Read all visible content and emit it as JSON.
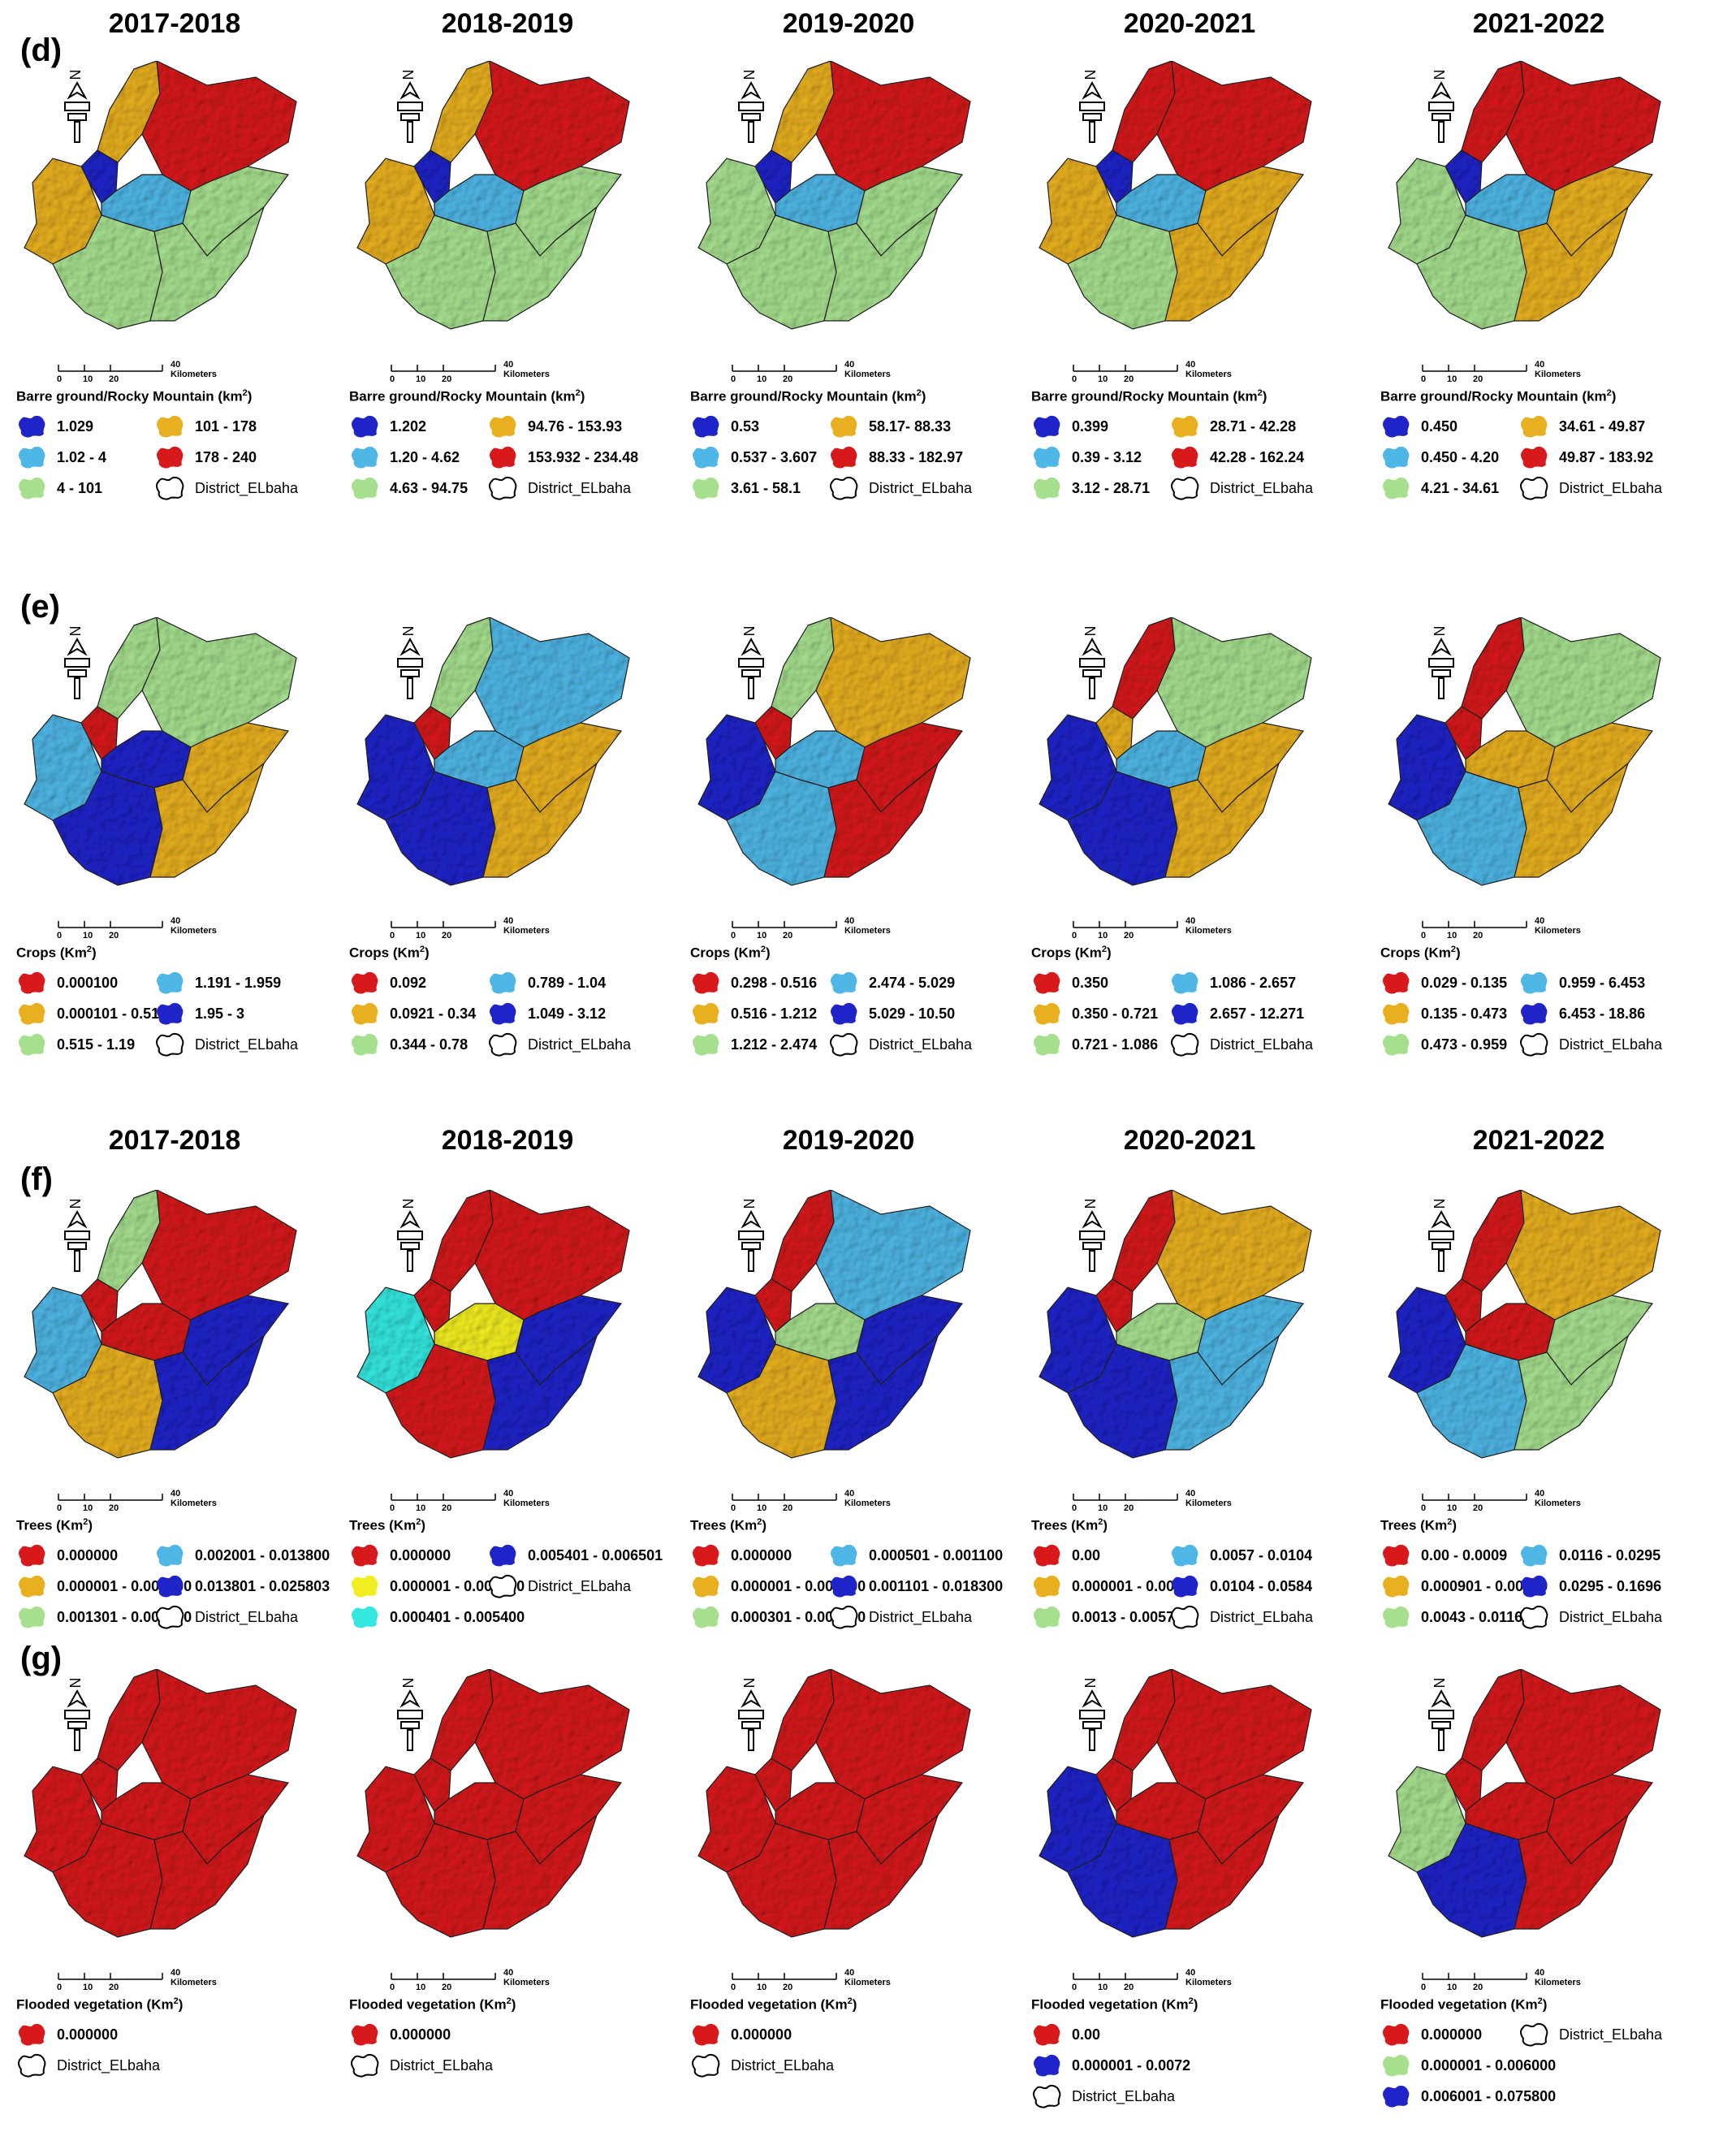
{
  "years_top": [
    "2017-2018",
    "2018-2019",
    "2019-2020",
    "2020-2021",
    "2021-2022"
  ],
  "years_bottom": [
    "2017-2018",
    "2018-2019",
    "2019-2020",
    "2020-2021",
    "2021-2022"
  ],
  "colors": {
    "red": "#d7191c",
    "orange": "#e8b020",
    "green": "#a6e08f",
    "light_blue": "#4fb7e6",
    "dark_blue": "#1f24c9",
    "yellow": "#f2ee21",
    "cyan": "#34e8e0"
  },
  "scale_label": "40 Kilometers",
  "scale_ticks": [
    "0",
    "10",
    "20"
  ],
  "district_label": "District_ELbaha",
  "rows": [
    {
      "label": "(d)",
      "legend_title": "Barre ground/Rocky Mountain (km",
      "legend_sup": "2",
      "legend_close": ")",
      "maps": [
        {
          "regions": [
            "orange",
            "orange",
            "red",
            "dark_blue",
            "light_blue",
            "green",
            "green",
            "green"
          ],
          "legend": [
            {
              "c": "dark_blue",
              "t": "1.029"
            },
            {
              "c": "light_blue",
              "t": "1.02 - 4"
            },
            {
              "c": "green",
              "t": "4 - 101"
            },
            {
              "c": "orange",
              "t": "101 - 178"
            },
            {
              "c": "red",
              "t": "178 - 240"
            }
          ]
        },
        {
          "regions": [
            "orange",
            "orange",
            "red",
            "dark_blue",
            "light_blue",
            "green",
            "green",
            "green"
          ],
          "legend": [
            {
              "c": "dark_blue",
              "t": "1.202"
            },
            {
              "c": "light_blue",
              "t": "1.20 - 4.62"
            },
            {
              "c": "green",
              "t": "4.63 - 94.75"
            },
            {
              "c": "orange",
              "t": "94.76 - 153.93"
            },
            {
              "c": "red",
              "t": "153.932 - 234.48"
            }
          ]
        },
        {
          "regions": [
            "orange",
            "green",
            "red",
            "dark_blue",
            "light_blue",
            "green",
            "green",
            "green"
          ],
          "legend": [
            {
              "c": "dark_blue",
              "t": "0.53"
            },
            {
              "c": "light_blue",
              "t": "0.537 - 3.607"
            },
            {
              "c": "green",
              "t": "3.61 - 58.1"
            },
            {
              "c": "orange",
              "t": "58.17- 88.33"
            },
            {
              "c": "red",
              "t": "88.33 - 182.97"
            }
          ]
        },
        {
          "regions": [
            "red",
            "orange",
            "red",
            "dark_blue",
            "light_blue",
            "orange",
            "green",
            "orange"
          ],
          "legend": [
            {
              "c": "dark_blue",
              "t": "0.399"
            },
            {
              "c": "light_blue",
              "t": "0.39 - 3.12"
            },
            {
              "c": "green",
              "t": "3.12 - 28.71"
            },
            {
              "c": "orange",
              "t": "28.71 - 42.28"
            },
            {
              "c": "red",
              "t": "42.28 - 162.24"
            }
          ]
        },
        {
          "regions": [
            "red",
            "green",
            "red",
            "dark_blue",
            "light_blue",
            "orange",
            "green",
            "orange"
          ],
          "legend": [
            {
              "c": "dark_blue",
              "t": "0.450"
            },
            {
              "c": "light_blue",
              "t": "0.450 - 4.20"
            },
            {
              "c": "green",
              "t": "4.21 - 34.61"
            },
            {
              "c": "orange",
              "t": "34.61 - 49.87"
            },
            {
              "c": "red",
              "t": "49.87 - 183.92"
            }
          ]
        }
      ]
    },
    {
      "label": "(e)",
      "legend_title": "Crops (Km",
      "legend_sup": "2",
      "legend_close": ")",
      "maps": [
        {
          "regions": [
            "green",
            "light_blue",
            "green",
            "red",
            "dark_blue",
            "orange",
            "dark_blue",
            "orange"
          ],
          "legend": [
            {
              "c": "red",
              "t": "0.000100"
            },
            {
              "c": "orange",
              "t": "0.000101 - 0.51"
            },
            {
              "c": "green",
              "t": "0.515 - 1.19"
            },
            {
              "c": "light_blue",
              "t": "1.191 - 1.959"
            },
            {
              "c": "dark_blue",
              "t": "1.95 - 3"
            }
          ]
        },
        {
          "regions": [
            "green",
            "dark_blue",
            "light_blue",
            "red",
            "light_blue",
            "orange",
            "dark_blue",
            "orange"
          ],
          "legend": [
            {
              "c": "red",
              "t": "0.092"
            },
            {
              "c": "orange",
              "t": "0.0921 - 0.34"
            },
            {
              "c": "green",
              "t": "0.344 - 0.78"
            },
            {
              "c": "light_blue",
              "t": "0.789 - 1.04"
            },
            {
              "c": "dark_blue",
              "t": "1.049 - 3.12"
            }
          ]
        },
        {
          "regions": [
            "green",
            "dark_blue",
            "orange",
            "red",
            "light_blue",
            "red",
            "light_blue",
            "red"
          ],
          "legend": [
            {
              "c": "red",
              "t": "0.298 - 0.516"
            },
            {
              "c": "orange",
              "t": "0.516 - 1.212"
            },
            {
              "c": "green",
              "t": "1.212 - 2.474"
            },
            {
              "c": "light_blue",
              "t": "2.474 - 5.029"
            },
            {
              "c": "dark_blue",
              "t": "5.029 - 10.50"
            }
          ]
        },
        {
          "regions": [
            "red",
            "dark_blue",
            "green",
            "orange",
            "light_blue",
            "orange",
            "dark_blue",
            "orange"
          ],
          "legend": [
            {
              "c": "red",
              "t": "0.350"
            },
            {
              "c": "orange",
              "t": "0.350 - 0.721"
            },
            {
              "c": "green",
              "t": "0.721 - 1.086"
            },
            {
              "c": "light_blue",
              "t": "1.086 - 2.657"
            },
            {
              "c": "dark_blue",
              "t": "2.657 - 12.271"
            }
          ]
        },
        {
          "regions": [
            "red",
            "dark_blue",
            "green",
            "red",
            "orange",
            "orange",
            "light_blue",
            "orange"
          ],
          "legend": [
            {
              "c": "red",
              "t": "0.029 - 0.135"
            },
            {
              "c": "orange",
              "t": "0.135 - 0.473"
            },
            {
              "c": "green",
              "t": "0.473 - 0.959"
            },
            {
              "c": "light_blue",
              "t": "0.959 - 6.453"
            },
            {
              "c": "dark_blue",
              "t": "6.453 - 18.86"
            }
          ]
        }
      ]
    },
    {
      "label": "(f)",
      "legend_title": "Trees (Km",
      "legend_sup": "2",
      "legend_close": ")",
      "maps": [
        {
          "regions": [
            "green",
            "light_blue",
            "red",
            "red",
            "red",
            "dark_blue",
            "orange",
            "dark_blue"
          ],
          "legend": [
            {
              "c": "red",
              "t": "0.000000"
            },
            {
              "c": "orange",
              "t": "0.000001 - 0.001300"
            },
            {
              "c": "green",
              "t": "0.001301 - 0.002000"
            },
            {
              "c": "light_blue",
              "t": "0.002001 - 0.013800"
            },
            {
              "c": "dark_blue",
              "t": "0.013801 - 0.025803"
            }
          ]
        },
        {
          "regions": [
            "red",
            "cyan",
            "red",
            "red",
            "yellow",
            "dark_blue",
            "red",
            "dark_blue"
          ],
          "legend": [
            {
              "c": "red",
              "t": "0.000000"
            },
            {
              "c": "yellow",
              "t": "0.000001 - 0.000400"
            },
            {
              "c": "cyan",
              "t": "0.000401 - 0.005400"
            },
            {
              "c": "dark_blue",
              "t": "0.005401 - 0.006501"
            }
          ]
        },
        {
          "regions": [
            "red",
            "dark_blue",
            "light_blue",
            "red",
            "green",
            "dark_blue",
            "orange",
            "dark_blue"
          ],
          "legend": [
            {
              "c": "red",
              "t": "0.000000"
            },
            {
              "c": "orange",
              "t": "0.000001 - 0.000300"
            },
            {
              "c": "green",
              "t": "0.000301 - 0.000500"
            },
            {
              "c": "light_blue",
              "t": "0.000501 - 0.001100"
            },
            {
              "c": "dark_blue",
              "t": "0.001101 - 0.018300"
            }
          ]
        },
        {
          "regions": [
            "red",
            "dark_blue",
            "orange",
            "red",
            "green",
            "light_blue",
            "dark_blue",
            "light_blue"
          ],
          "legend": [
            {
              "c": "red",
              "t": "0.00"
            },
            {
              "c": "orange",
              "t": "0.000001 - 0.0013"
            },
            {
              "c": "green",
              "t": "0.0013 - 0.0057"
            },
            {
              "c": "light_blue",
              "t": "0.0057 - 0.0104"
            },
            {
              "c": "dark_blue",
              "t": "0.0104 - 0.0584"
            }
          ]
        },
        {
          "regions": [
            "red",
            "dark_blue",
            "orange",
            "red",
            "red",
            "green",
            "light_blue",
            "green"
          ],
          "legend": [
            {
              "c": "red",
              "t": "0.00 - 0.0009"
            },
            {
              "c": "orange",
              "t": "0.000901 - 0.00429"
            },
            {
              "c": "green",
              "t": "0.0043 - 0.0116"
            },
            {
              "c": "light_blue",
              "t": "0.0116 - 0.0295"
            },
            {
              "c": "dark_blue",
              "t": "0.0295 - 0.1696"
            }
          ]
        }
      ]
    },
    {
      "label": "(g)",
      "legend_title": "Flooded vegetation  (Km",
      "legend_sup": "2",
      "legend_close": ")",
      "maps": [
        {
          "regions": [
            "red",
            "red",
            "red",
            "red",
            "red",
            "red",
            "red",
            "red"
          ],
          "legend": [
            {
              "c": "red",
              "t": "0.000000"
            }
          ]
        },
        {
          "regions": [
            "red",
            "red",
            "red",
            "red",
            "red",
            "red",
            "red",
            "red"
          ],
          "legend": [
            {
              "c": "red",
              "t": "0.000000"
            }
          ]
        },
        {
          "regions": [
            "red",
            "red",
            "red",
            "red",
            "red",
            "red",
            "red",
            "red"
          ],
          "legend": [
            {
              "c": "red",
              "t": "0.000000"
            }
          ]
        },
        {
          "regions": [
            "red",
            "dark_blue",
            "red",
            "red",
            "red",
            "red",
            "dark_blue",
            "red"
          ],
          "legend": [
            {
              "c": "red",
              "t": "0.00"
            },
            {
              "c": "dark_blue",
              "t": "0.000001 - 0.0072"
            }
          ]
        },
        {
          "regions": [
            "red",
            "green",
            "red",
            "red",
            "red",
            "red",
            "dark_blue",
            "red"
          ],
          "legend": [
            {
              "c": "red",
              "t": "0.000000"
            },
            {
              "c": "green",
              "t": "0.000001 - 0.006000"
            },
            {
              "c": "dark_blue",
              "t": "0.006001 - 0.075800"
            }
          ]
        }
      ]
    }
  ]
}
